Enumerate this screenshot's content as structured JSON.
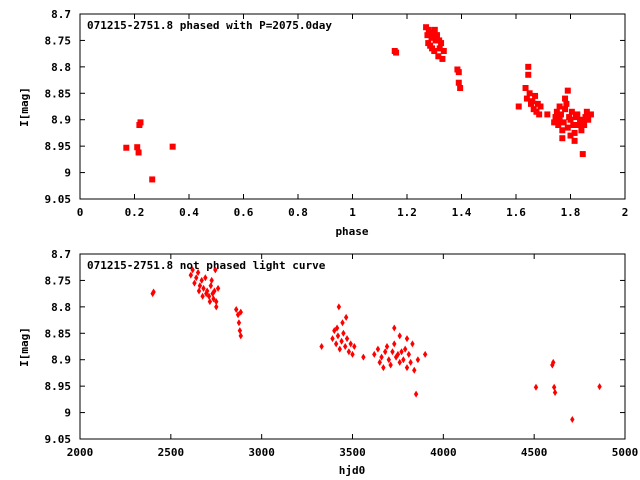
{
  "chart_data": [
    {
      "type": "scatter",
      "title": "071215-2751.8 phased with P=2075.0day",
      "xlabel": "phase",
      "ylabel": "I[mag]",
      "xlim": [
        0,
        2
      ],
      "ylim": [
        8.7,
        9.05
      ],
      "y_inverted": true,
      "xticks": [
        "0",
        "0.2",
        "0.4",
        "0.6",
        "0.8",
        "1",
        "1.2",
        "1.4",
        "1.6",
        "1.8",
        "2"
      ],
      "yticks": [
        "8.7",
        "8.75",
        "8.8",
        "8.85",
        "8.9",
        "8.95",
        "9",
        "9.05"
      ],
      "grid": false,
      "marker_color": "#ff0000",
      "points": [
        [
          0.17,
          8.953
        ],
        [
          0.21,
          8.952
        ],
        [
          0.215,
          8.962
        ],
        [
          0.218,
          8.91
        ],
        [
          0.222,
          8.905
        ],
        [
          0.265,
          9.013
        ],
        [
          0.34,
          8.951
        ],
        [
          1.155,
          8.77
        ],
        [
          1.16,
          8.773
        ],
        [
          1.27,
          8.725
        ],
        [
          1.275,
          8.74
        ],
        [
          1.28,
          8.73
        ],
        [
          1.285,
          8.76
        ],
        [
          1.29,
          8.745
        ],
        [
          1.295,
          8.735
        ],
        [
          1.3,
          8.77
        ],
        [
          1.305,
          8.75
        ],
        [
          1.31,
          8.74
        ],
        [
          1.315,
          8.78
        ],
        [
          1.32,
          8.765
        ],
        [
          1.325,
          8.755
        ],
        [
          1.33,
          8.785
        ],
        [
          1.335,
          8.77
        ],
        [
          1.278,
          8.755
        ],
        [
          1.292,
          8.765
        ],
        [
          1.302,
          8.73
        ],
        [
          1.318,
          8.75
        ],
        [
          1.385,
          8.805
        ],
        [
          1.39,
          8.81
        ],
        [
          1.39,
          8.83
        ],
        [
          1.395,
          8.84
        ],
        [
          1.61,
          8.875
        ],
        [
          1.635,
          8.84
        ],
        [
          1.64,
          8.86
        ],
        [
          1.645,
          8.8
        ],
        [
          1.645,
          8.815
        ],
        [
          1.65,
          8.85
        ],
        [
          1.655,
          8.87
        ],
        [
          1.66,
          8.865
        ],
        [
          1.665,
          8.88
        ],
        [
          1.67,
          8.855
        ],
        [
          1.675,
          8.885
        ],
        [
          1.68,
          8.87
        ],
        [
          1.685,
          8.89
        ],
        [
          1.69,
          8.875
        ],
        [
          1.715,
          8.89
        ],
        [
          1.74,
          8.905
        ],
        [
          1.745,
          8.895
        ],
        [
          1.75,
          8.885
        ],
        [
          1.755,
          8.91
        ],
        [
          1.76,
          8.9
        ],
        [
          1.765,
          8.89
        ],
        [
          1.77,
          8.92
        ],
        [
          1.775,
          8.905
        ],
        [
          1.78,
          8.88
        ],
        [
          1.785,
          8.87
        ],
        [
          1.79,
          8.915
        ],
        [
          1.795,
          8.895
        ],
        [
          1.8,
          8.9
        ],
        [
          1.805,
          8.885
        ],
        [
          1.81,
          8.91
        ],
        [
          1.815,
          8.925
        ],
        [
          1.82,
          8.895
        ],
        [
          1.825,
          8.89
        ],
        [
          1.83,
          8.91
        ],
        [
          1.835,
          8.9
        ],
        [
          1.84,
          8.92
        ],
        [
          1.845,
          8.905
        ],
        [
          1.85,
          8.91
        ],
        [
          1.855,
          8.895
        ],
        [
          1.86,
          8.885
        ],
        [
          1.865,
          8.9
        ],
        [
          1.875,
          8.89
        ],
        [
          1.78,
          8.86
        ],
        [
          1.79,
          8.845
        ],
        [
          1.8,
          8.93
        ],
        [
          1.815,
          8.94
        ],
        [
          1.845,
          8.965
        ],
        [
          1.77,
          8.935
        ],
        [
          1.76,
          8.875
        ]
      ]
    },
    {
      "type": "scatter",
      "title": "071215-2751.8 not phased light curve",
      "xlabel": "hjd0",
      "ylabel": "I[mag]",
      "xlim": [
        2000,
        5000
      ],
      "ylim": [
        8.7,
        9.05
      ],
      "y_inverted": true,
      "xticks": [
        "2000",
        "2500",
        "3000",
        "3500",
        "4000",
        "4500",
        "5000"
      ],
      "yticks": [
        "8.7",
        "8.75",
        "8.8",
        "8.85",
        "8.9",
        "8.95",
        "9",
        "9.05"
      ],
      "grid": false,
      "marker_color": "#ff0000",
      "points": [
        [
          2400,
          8.775
        ],
        [
          2405,
          8.772
        ],
        [
          2610,
          8.74
        ],
        [
          2620,
          8.73
        ],
        [
          2630,
          8.755
        ],
        [
          2640,
          8.745
        ],
        [
          2650,
          8.735
        ],
        [
          2660,
          8.76
        ],
        [
          2670,
          8.75
        ],
        [
          2680,
          8.765
        ],
        [
          2690,
          8.745
        ],
        [
          2700,
          8.77
        ],
        [
          2710,
          8.78
        ],
        [
          2720,
          8.76
        ],
        [
          2730,
          8.775
        ],
        [
          2740,
          8.77
        ],
        [
          2750,
          8.79
        ],
        [
          2760,
          8.765
        ],
        [
          2655,
          8.77
        ],
        [
          2675,
          8.78
        ],
        [
          2695,
          8.775
        ],
        [
          2715,
          8.79
        ],
        [
          2735,
          8.785
        ],
        [
          2750,
          8.8
        ],
        [
          2745,
          8.73
        ],
        [
          2725,
          8.75
        ],
        [
          2860,
          8.805
        ],
        [
          2870,
          8.815
        ],
        [
          2875,
          8.83
        ],
        [
          2880,
          8.845
        ],
        [
          2885,
          8.855
        ],
        [
          2885,
          8.81
        ],
        [
          3330,
          8.875
        ],
        [
          3390,
          8.86
        ],
        [
          3400,
          8.845
        ],
        [
          3410,
          8.87
        ],
        [
          3420,
          8.855
        ],
        [
          3425,
          8.8
        ],
        [
          3430,
          8.88
        ],
        [
          3440,
          8.865
        ],
        [
          3450,
          8.85
        ],
        [
          3460,
          8.875
        ],
        [
          3470,
          8.86
        ],
        [
          3480,
          8.885
        ],
        [
          3490,
          8.87
        ],
        [
          3500,
          8.89
        ],
        [
          3510,
          8.875
        ],
        [
          3445,
          8.83
        ],
        [
          3465,
          8.82
        ],
        [
          3415,
          8.84
        ],
        [
          3560,
          8.895
        ],
        [
          3620,
          8.89
        ],
        [
          3640,
          8.88
        ],
        [
          3650,
          8.905
        ],
        [
          3660,
          8.895
        ],
        [
          3670,
          8.915
        ],
        [
          3680,
          8.885
        ],
        [
          3690,
          8.875
        ],
        [
          3700,
          8.9
        ],
        [
          3710,
          8.91
        ],
        [
          3720,
          8.885
        ],
        [
          3730,
          8.87
        ],
        [
          3740,
          8.895
        ],
        [
          3750,
          8.89
        ],
        [
          3760,
          8.905
        ],
        [
          3770,
          8.885
        ],
        [
          3780,
          8.9
        ],
        [
          3790,
          8.88
        ],
        [
          3800,
          8.915
        ],
        [
          3810,
          8.89
        ],
        [
          3820,
          8.905
        ],
        [
          3830,
          8.87
        ],
        [
          3840,
          8.92
        ],
        [
          3850,
          8.965
        ],
        [
          3860,
          8.9
        ],
        [
          3900,
          8.89
        ],
        [
          3730,
          8.84
        ],
        [
          3760,
          8.855
        ],
        [
          3800,
          8.86
        ],
        [
          4510,
          8.952
        ],
        [
          4600,
          8.91
        ],
        [
          4605,
          8.905
        ],
        [
          4610,
          8.952
        ],
        [
          4615,
          8.962
        ],
        [
          4710,
          9.013
        ],
        [
          4860,
          8.951
        ]
      ]
    }
  ]
}
